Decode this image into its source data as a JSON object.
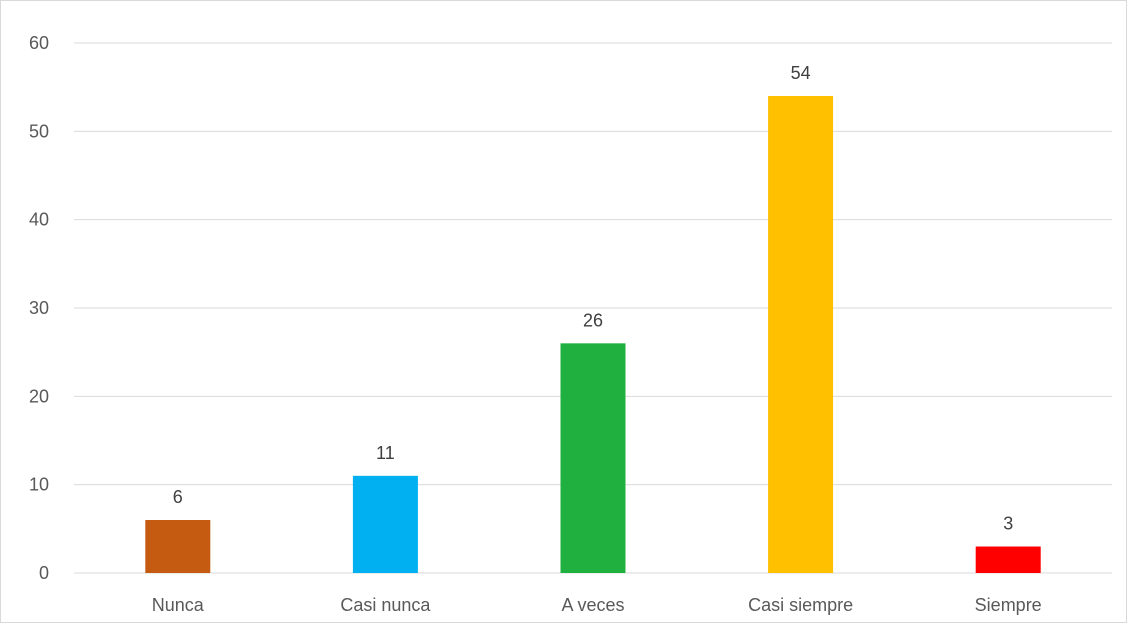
{
  "chart_data": {
    "type": "bar",
    "title": "",
    "xlabel": "",
    "ylabel": "",
    "categories": [
      "Nunca",
      "Casi nunca",
      "A veces",
      "Casi siempre",
      "Siempre"
    ],
    "values": [
      6,
      11,
      26,
      54,
      3
    ],
    "colors": [
      "#c55a11",
      "#00b0f0",
      "#20b03f",
      "#ffc000",
      "#ff0000"
    ],
    "ylim": [
      0,
      60
    ],
    "yticks": [
      0,
      10,
      20,
      30,
      40,
      50,
      60
    ],
    "data_labels": true,
    "grid": true,
    "legend": "none"
  }
}
